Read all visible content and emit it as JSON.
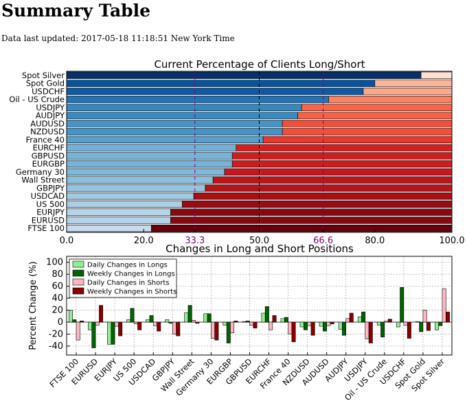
{
  "page": {
    "title": "Summary Table",
    "updated_label": "Data last updated:",
    "updated_time": "2017-05-18 11:18:51 New York Time"
  },
  "colors": {
    "long_scale": [
      "#08306b",
      "#08519c",
      "#2171b5",
      "#4292c6",
      "#6baed6",
      "#9ecae1",
      "#c6dbef"
    ],
    "short_scale": [
      "#67000d",
      "#a50f15",
      "#cb181d",
      "#ef3b2c",
      "#fb6a4a",
      "#fc9272",
      "#fcbba1",
      "#fee0d2"
    ],
    "guide_line": "#800080",
    "daily_long": "#90ee90",
    "weekly_long": "#006400",
    "daily_short": "#ffb6c1",
    "weekly_short": "#8b0000"
  },
  "chart_data": [
    {
      "type": "bar",
      "orientation": "horizontal",
      "stacked": true,
      "title": "Current Percentage of Clients Long/Short",
      "categories": [
        "Spot Silver",
        "Spot Gold",
        "USDCHF",
        "Oil - US Crude",
        "USDJPY",
        "AUDJPY",
        "AUDUSD",
        "NZDUSD",
        "France 40",
        "EURCHF",
        "GBPUSD",
        "EURGBP",
        "Germany 30",
        "Wall Street",
        "GBPJPY",
        "USDCAD",
        "US 500",
        "EURJPY",
        "EURUSD",
        "FTSE 100"
      ],
      "series": [
        {
          "name": "Long",
          "values": [
            92,
            80,
            77,
            68,
            61,
            60,
            56,
            56,
            51,
            44,
            43,
            43,
            41,
            38,
            36,
            33,
            30,
            27,
            27,
            22
          ]
        },
        {
          "name": "Short",
          "values": [
            8,
            20,
            23,
            32,
            39,
            40,
            44,
            44,
            49,
            56,
            57,
            57,
            59,
            62,
            64,
            67,
            70,
            73,
            73,
            78
          ]
        }
      ],
      "xlim": [
        0,
        100
      ],
      "xticks": [
        "0.0",
        "20.0",
        "33.3",
        "50.0",
        "66.6",
        "80.0",
        "100.0"
      ],
      "xtick_values": [
        0,
        20,
        33.3,
        50,
        66.6,
        80,
        100
      ],
      "highlight_ticks": [
        "33.3",
        "66.6"
      ],
      "guide_lines": [
        33.3,
        50,
        66.6
      ]
    },
    {
      "type": "bar",
      "title": "Changes in Long and Short Positions",
      "ylabel": "Percent Change (%)",
      "ylim": [
        -55,
        110
      ],
      "yticks": [
        -40,
        -20,
        0,
        20,
        40,
        60,
        80,
        100
      ],
      "grid": true,
      "legend": "top-left",
      "categories": [
        "FTSE 100",
        "EURUSD",
        "EURJPY",
        "US 500",
        "USDCAD",
        "GBPJPY",
        "Wall Street",
        "Germany 30",
        "EURGBP",
        "GBPUSD",
        "EURCHF",
        "France 40",
        "NZDUSD",
        "AUDUSD",
        "AUDJPY",
        "USDJPY",
        "Oil - US Crude",
        "USDCHF",
        "Spot Gold",
        "Spot Silver"
      ],
      "series": [
        {
          "name": "Daily Changes in Longs",
          "values": [
            20,
            -13,
            -37,
            4,
            4,
            4,
            16,
            14,
            -5,
            1,
            15,
            6,
            -8,
            -7,
            -12,
            9,
            -5,
            -8,
            1,
            -13
          ]
        },
        {
          "name": "Weekly Changes in Longs",
          "values": [
            4,
            -43,
            -37,
            23,
            11,
            -2,
            28,
            14,
            -35,
            2,
            26,
            8,
            -13,
            -15,
            -22,
            17,
            -25,
            58,
            -16,
            -6
          ]
        },
        {
          "name": "Daily Changes in Shorts",
          "values": [
            -30,
            -5,
            -7,
            -3,
            -6,
            -20,
            3,
            -27,
            -18,
            -5,
            -13,
            -20,
            -6,
            -6,
            6,
            -28,
            2,
            -5,
            20,
            56
          ]
        },
        {
          "name": "Weekly Changes in Shorts",
          "values": [
            2,
            28,
            -23,
            -13,
            -15,
            -23,
            -2,
            -30,
            2,
            -10,
            11,
            -33,
            -22,
            -3,
            15,
            -35,
            5,
            -27,
            -14,
            17
          ]
        }
      ]
    }
  ]
}
